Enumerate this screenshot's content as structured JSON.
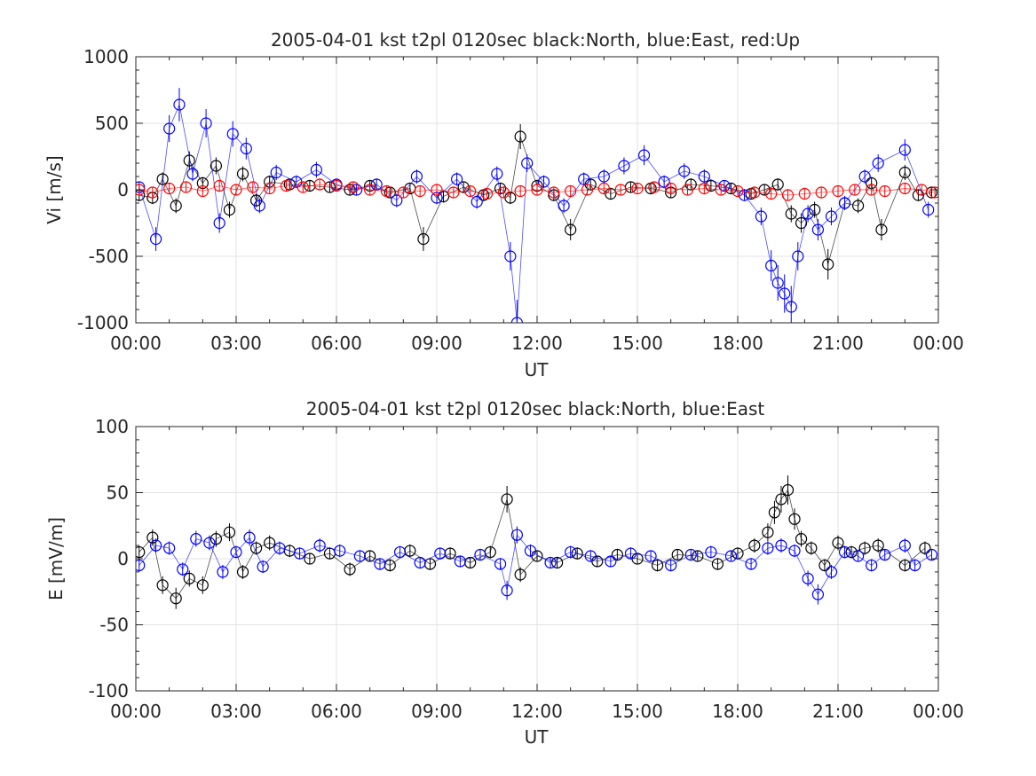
{
  "chart_data": [
    {
      "type": "scatter",
      "title": "2005-04-01 kst t2pl 0120sec black:North, blue:East, red:Up",
      "xlabel": "UT",
      "ylabel": "Vi [m/s]",
      "xlim": [
        0,
        24
      ],
      "ylim": [
        -1000,
        1000
      ],
      "xticks": [
        "00:00",
        "03:00",
        "06:00",
        "09:00",
        "12:00",
        "15:00",
        "18:00",
        "21:00",
        "00:00"
      ],
      "yticks": [
        "-1000",
        "-500",
        "0",
        "500",
        "1000"
      ],
      "grid": true,
      "marker": "open circle with vertical error bar",
      "series": [
        {
          "color": "#000000",
          "x": [
            0.1,
            0.5,
            0.8,
            1.2,
            1.6,
            2.0,
            2.4,
            2.8,
            3.2,
            3.6,
            4.0,
            4.6,
            5.2,
            5.8,
            6.4,
            7.0,
            7.6,
            8.2,
            8.6,
            9.2,
            9.8,
            10.4,
            10.9,
            11.2,
            11.5,
            12.0,
            12.5,
            13.0,
            13.6,
            14.2,
            14.8,
            15.4,
            16.0,
            16.6,
            17.2,
            17.8,
            18.4,
            18.8,
            19.2,
            19.6,
            19.9,
            20.3,
            20.7,
            21.2,
            21.6,
            22.0,
            22.3,
            23.0,
            23.4,
            23.8
          ],
          "y": [
            -40,
            -60,
            80,
            -120,
            220,
            50,
            180,
            -150,
            120,
            -80,
            60,
            40,
            30,
            20,
            0,
            30,
            -20,
            10,
            -370,
            -50,
            20,
            -40,
            10,
            -60,
            400,
            30,
            -40,
            -300,
            40,
            -30,
            20,
            10,
            -20,
            40,
            30,
            10,
            -30,
            0,
            40,
            -180,
            -250,
            -150,
            -560,
            -100,
            -120,
            50,
            -300,
            130,
            -40,
            -20
          ]
        },
        {
          "color": "#0000ff",
          "x": [
            0.1,
            0.6,
            1.0,
            1.3,
            1.7,
            2.1,
            2.5,
            2.9,
            3.3,
            3.7,
            4.2,
            4.8,
            5.4,
            6.0,
            6.6,
            7.2,
            7.8,
            8.4,
            9.0,
            9.6,
            10.2,
            10.8,
            11.2,
            11.4,
            11.7,
            12.2,
            12.8,
            13.4,
            14.0,
            14.6,
            15.2,
            15.8,
            16.4,
            17.0,
            17.6,
            18.2,
            18.7,
            19.0,
            19.2,
            19.4,
            19.6,
            19.8,
            20.1,
            20.4,
            20.8,
            21.2,
            21.8,
            22.2,
            23.0,
            23.7
          ],
          "y": [
            20,
            -370,
            460,
            640,
            120,
            500,
            -250,
            420,
            310,
            -120,
            130,
            60,
            150,
            40,
            0,
            40,
            -80,
            100,
            -60,
            80,
            -90,
            120,
            -500,
            -1000,
            200,
            60,
            -120,
            80,
            100,
            180,
            260,
            60,
            140,
            100,
            30,
            -40,
            -200,
            -570,
            -700,
            -780,
            -880,
            -500,
            -180,
            -300,
            -200,
            -100,
            100,
            200,
            300,
            -150
          ]
        },
        {
          "color": "#ff0000",
          "x": [
            0.1,
            0.5,
            1.0,
            1.5,
            2.0,
            2.5,
            3.0,
            3.5,
            4.0,
            4.5,
            5.0,
            5.5,
            6.0,
            6.5,
            7.0,
            7.5,
            8.0,
            8.5,
            9.0,
            9.5,
            10.0,
            10.5,
            11.0,
            11.5,
            12.0,
            12.5,
            13.0,
            13.5,
            14.0,
            14.5,
            15.0,
            15.5,
            16.0,
            16.5,
            17.0,
            17.5,
            18.0,
            18.5,
            19.0,
            19.5,
            20.0,
            20.5,
            21.0,
            21.5,
            22.0,
            22.4,
            23.0,
            23.5,
            23.9
          ],
          "y": [
            0,
            -20,
            10,
            20,
            -10,
            30,
            0,
            20,
            10,
            30,
            20,
            40,
            30,
            20,
            0,
            -10,
            -20,
            -10,
            0,
            -20,
            -10,
            -30,
            -20,
            -10,
            0,
            -20,
            -10,
            0,
            10,
            0,
            10,
            20,
            10,
            0,
            10,
            0,
            -10,
            -20,
            -30,
            -40,
            -30,
            -20,
            -10,
            0,
            0,
            -10,
            10,
            0,
            -20
          ]
        }
      ]
    },
    {
      "type": "scatter",
      "title": "2005-04-01 kst t2pl 0120sec black:North, blue:East",
      "xlabel": "UT",
      "ylabel": "E [mV/m]",
      "xlim": [
        0,
        24
      ],
      "ylim": [
        -100,
        100
      ],
      "xticks": [
        "00:00",
        "03:00",
        "06:00",
        "09:00",
        "12:00",
        "15:00",
        "18:00",
        "21:00",
        "00:00"
      ],
      "yticks": [
        "-100",
        "-50",
        "0",
        "50",
        "100"
      ],
      "grid": true,
      "marker": "open circle with vertical error bar",
      "series": [
        {
          "color": "#000000",
          "x": [
            0.1,
            0.5,
            0.8,
            1.2,
            1.6,
            2.0,
            2.4,
            2.8,
            3.2,
            3.6,
            4.0,
            4.6,
            5.2,
            5.8,
            6.4,
            7.0,
            7.6,
            8.2,
            8.8,
            9.4,
            10.0,
            10.6,
            11.1,
            11.5,
            12.0,
            12.6,
            13.2,
            13.8,
            14.4,
            15.0,
            15.6,
            16.2,
            16.8,
            17.4,
            18.0,
            18.5,
            18.9,
            19.1,
            19.3,
            19.5,
            19.7,
            19.9,
            20.2,
            20.6,
            21.0,
            21.4,
            21.8,
            22.2,
            23.0,
            23.6
          ],
          "y": [
            5,
            16,
            -20,
            -30,
            -15,
            -20,
            15,
            20,
            -10,
            8,
            12,
            6,
            0,
            4,
            -8,
            2,
            -5,
            6,
            -4,
            4,
            -3,
            5,
            45,
            -12,
            2,
            -3,
            4,
            -2,
            3,
            0,
            -5,
            3,
            2,
            -4,
            4,
            10,
            20,
            35,
            45,
            52,
            30,
            15,
            8,
            -5,
            12,
            5,
            8,
            10,
            -5,
            8
          ]
        },
        {
          "color": "#0000ff",
          "x": [
            0.1,
            0.6,
            1.0,
            1.4,
            1.8,
            2.2,
            2.6,
            3.0,
            3.4,
            3.8,
            4.3,
            4.9,
            5.5,
            6.1,
            6.7,
            7.3,
            7.9,
            8.5,
            9.1,
            9.7,
            10.3,
            10.9,
            11.1,
            11.4,
            11.8,
            12.4,
            13.0,
            13.6,
            14.2,
            14.8,
            15.4,
            16.0,
            16.6,
            17.2,
            17.8,
            18.4,
            18.9,
            19.3,
            19.7,
            20.1,
            20.4,
            20.8,
            21.2,
            21.6,
            22.0,
            22.4,
            23.0,
            23.3,
            23.8
          ],
          "y": [
            -5,
            10,
            8,
            -8,
            15,
            12,
            -10,
            5,
            16,
            -6,
            8,
            4,
            10,
            6,
            2,
            -4,
            5,
            -3,
            4,
            -2,
            3,
            -4,
            -24,
            18,
            6,
            -3,
            5,
            2,
            -2,
            4,
            2,
            -5,
            3,
            5,
            2,
            -4,
            8,
            10,
            6,
            -15,
            -27,
            -10,
            5,
            2,
            -5,
            3,
            10,
            -5,
            3
          ]
        }
      ]
    }
  ]
}
